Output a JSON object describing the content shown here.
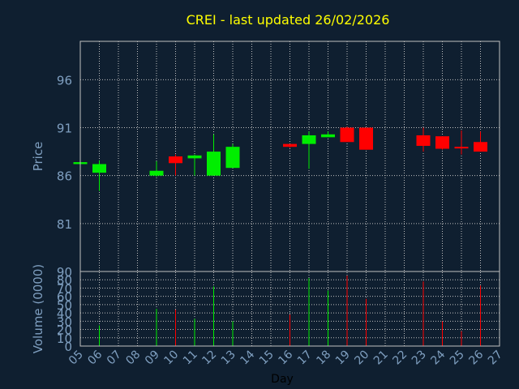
{
  "colors": {
    "background": "#0f1f30",
    "plot_border": "#c0c0c0",
    "grid": "#c0c0c0",
    "title": "#ffff00",
    "axis_text": "#7f9fc0",
    "xlabel_text": "#000000",
    "up": "#00ee00",
    "down": "#ff0000"
  },
  "chart_data": [
    {
      "type": "candlestick",
      "title": "CREI - last updated 26/02/2026",
      "ylabel": "Price",
      "ylim": [
        76,
        100
      ],
      "yticks": [
        81,
        86,
        91,
        96
      ],
      "grid": true,
      "candles": [
        {
          "day": "05",
          "open": 87.2,
          "high": 87.4,
          "low": 87.0,
          "close": 87.4
        },
        {
          "day": "06",
          "open": 86.3,
          "high": 87.6,
          "low": 84.4,
          "close": 87.2
        },
        {
          "day": "09",
          "open": 86.0,
          "high": 87.5,
          "low": 85.9,
          "close": 86.5
        },
        {
          "day": "10",
          "open": 88.0,
          "high": 88.2,
          "low": 86.0,
          "close": 87.3
        },
        {
          "day": "11",
          "open": 87.8,
          "high": 88.2,
          "low": 86.0,
          "close": 88.1
        },
        {
          "day": "12",
          "open": 86.0,
          "high": 90.3,
          "low": 86.0,
          "close": 88.5
        },
        {
          "day": "13",
          "open": 86.8,
          "high": 89.3,
          "low": 86.8,
          "close": 89.0
        },
        {
          "day": "16",
          "open": 89.3,
          "high": 89.3,
          "low": 88.9,
          "close": 89.0
        },
        {
          "day": "17",
          "open": 89.3,
          "high": 90.6,
          "low": 86.7,
          "close": 90.2
        },
        {
          "day": "18",
          "open": 90.0,
          "high": 90.6,
          "low": 90.0,
          "close": 90.3
        },
        {
          "day": "19",
          "open": 91.0,
          "high": 91.1,
          "low": 89.5,
          "close": 89.5
        },
        {
          "day": "20",
          "open": 91.0,
          "high": 91.0,
          "low": 88.7,
          "close": 88.7
        },
        {
          "day": "23",
          "open": 90.2,
          "high": 91.0,
          "low": 88.5,
          "close": 89.1
        },
        {
          "day": "24",
          "open": 90.1,
          "high": 90.1,
          "low": 88.7,
          "close": 88.8
        },
        {
          "day": "25",
          "open": 89.0,
          "high": 90.7,
          "low": 88.2,
          "close": 88.9
        },
        {
          "day": "26",
          "open": 89.5,
          "high": 90.6,
          "low": 88.5,
          "close": 88.5
        }
      ]
    },
    {
      "type": "bar",
      "ylabel": "Volume (0000)",
      "xlabel": "Day",
      "ylim": [
        0,
        90
      ],
      "yticks": [
        0,
        10,
        20,
        30,
        40,
        50,
        60,
        70,
        80,
        90
      ],
      "grid": true,
      "x_ticks": [
        "05",
        "06",
        "07",
        "08",
        "09",
        "10",
        "11",
        "12",
        "13",
        "14",
        "15",
        "16",
        "17",
        "18",
        "19",
        "20",
        "21",
        "22",
        "23",
        "24",
        "25",
        "26",
        "27"
      ],
      "bars": [
        {
          "day": "06",
          "value": 25,
          "dir": "up"
        },
        {
          "day": "09",
          "value": 45,
          "dir": "up"
        },
        {
          "day": "10",
          "value": 44,
          "dir": "down"
        },
        {
          "day": "11",
          "value": 33,
          "dir": "up"
        },
        {
          "day": "12",
          "value": 72,
          "dir": "up"
        },
        {
          "day": "13",
          "value": 30,
          "dir": "up"
        },
        {
          "day": "16",
          "value": 38,
          "dir": "down"
        },
        {
          "day": "17",
          "value": 82,
          "dir": "up"
        },
        {
          "day": "18",
          "value": 67,
          "dir": "up"
        },
        {
          "day": "19",
          "value": 85,
          "dir": "down"
        },
        {
          "day": "20",
          "value": 57,
          "dir": "down"
        },
        {
          "day": "23",
          "value": 78,
          "dir": "down"
        },
        {
          "day": "24",
          "value": 30,
          "dir": "down"
        },
        {
          "day": "25",
          "value": 18,
          "dir": "down"
        },
        {
          "day": "26",
          "value": 73,
          "dir": "down"
        }
      ]
    }
  ]
}
